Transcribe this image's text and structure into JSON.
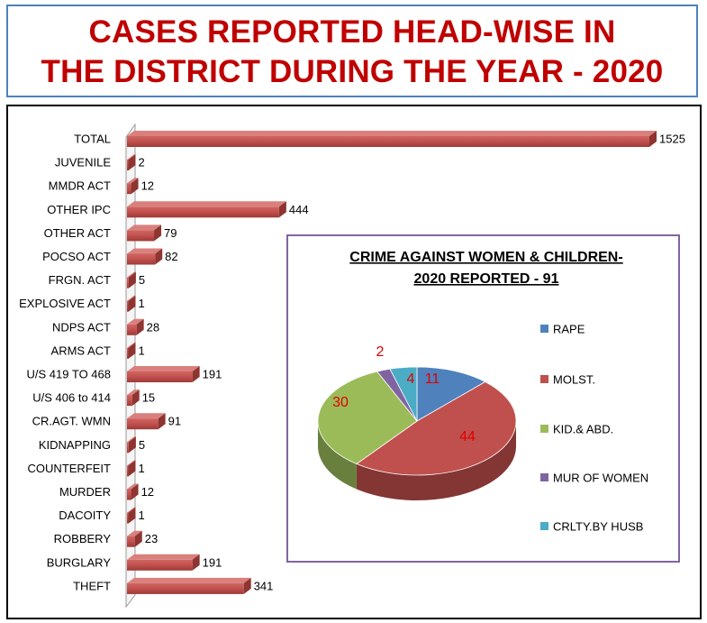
{
  "header": {
    "title_line1": "CASES REPORTED HEAD-WISE IN",
    "title_line2": "THE DISTRICT  DURING THE YEAR - 2020"
  },
  "chart_data": [
    {
      "type": "bar",
      "orientation": "horizontal",
      "categories": [
        "TOTAL",
        "JUVENILE",
        "MMDR ACT",
        "OTHER IPC",
        "OTHER ACT",
        "POCSO ACT",
        "FRGN. ACT",
        "EXPLOSIVE ACT",
        "NDPS ACT",
        "ARMS ACT",
        "U/S 419 TO 468",
        "U/S 406 to 414",
        "CR.AGT. WMN",
        "KIDNAPPING",
        "COUNTERFEIT",
        "MURDER",
        "DACOITY",
        "ROBBERY",
        "BURGLARY",
        "THEFT"
      ],
      "values": [
        1525,
        2,
        12,
        444,
        79,
        82,
        5,
        1,
        28,
        1,
        191,
        15,
        91,
        5,
        1,
        12,
        1,
        23,
        191,
        341
      ],
      "data_labels": [
        "1525",
        "2",
        "12",
        "444",
        "79",
        "82",
        "5",
        "1",
        "28",
        "1",
        "191",
        "15",
        "91",
        "5",
        "1",
        "12",
        "1",
        "23",
        "191",
        "341"
      ],
      "xlim": [
        0,
        1525
      ],
      "bar_color": "#c0504d",
      "grid": false,
      "legend": "none"
    },
    {
      "type": "pie",
      "title_line1": "CRIME AGAINST WOMEN & CHILDREN-",
      "title_line2": "2020 REPORTED  - 91",
      "labels": [
        "RAPE",
        "MOLST.",
        "KID.& ABD.",
        "MUR OF WOMEN",
        "CRLTY.BY HUSB"
      ],
      "values": [
        11,
        44,
        30,
        2,
        4
      ],
      "data_labels": [
        "11",
        "44",
        "30",
        "2",
        "4"
      ],
      "colors": [
        "#4f81bd",
        "#c0504d",
        "#9bbb59",
        "#8064a2",
        "#4bacc6"
      ],
      "legend": "right"
    }
  ]
}
